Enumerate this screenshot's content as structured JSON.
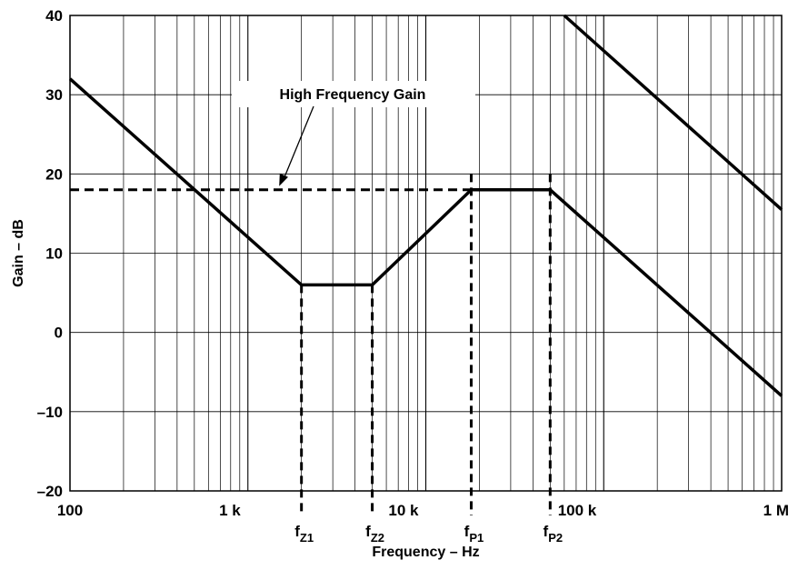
{
  "chart_data": {
    "type": "line",
    "title": "",
    "xlabel": "Frequency – Hz",
    "ylabel": "Gain – dB",
    "x_scale": "log",
    "xlim": [
      100,
      1000000
    ],
    "ylim": [
      -20,
      40
    ],
    "grid": true,
    "legend": "none",
    "x_ticks": [
      100,
      1000,
      10000,
      100000,
      1000000
    ],
    "x_tick_labels": [
      "100",
      "1 k",
      "10 k",
      "100 k",
      "1 M"
    ],
    "y_ticks": [
      -20,
      -10,
      0,
      10,
      20,
      30,
      40
    ],
    "y_tick_labels": [
      "–20",
      "–10",
      "0",
      "10",
      "20",
      "30",
      "40"
    ],
    "series": [
      {
        "style": "solid",
        "x": [
          100,
          2000,
          5000,
          18000,
          50000,
          1000000
        ],
        "y": [
          32,
          6,
          6,
          18,
          18,
          -8
        ]
      },
      {
        "style": "solid",
        "x": [
          60000,
          1000000
        ],
        "y": [
          40,
          15.5
        ]
      },
      {
        "style": "dashed",
        "x": [
          100,
          18000
        ],
        "y": [
          18,
          18
        ]
      }
    ],
    "annotations": [
      {
        "text": "High Frequency Gain",
        "points_to": {
          "x": 1500,
          "y": 18
        }
      }
    ],
    "frequency_markers": [
      {
        "main": "f",
        "sub": "Z1",
        "x": 2000,
        "y_from": 6
      },
      {
        "main": "f",
        "sub": "Z2",
        "x": 5000,
        "y_from": 6
      },
      {
        "main": "f",
        "sub": "P1",
        "x": 18000,
        "y_from": 20
      },
      {
        "main": "f",
        "sub": "P2",
        "x": 50000,
        "y_from": 20
      }
    ]
  }
}
